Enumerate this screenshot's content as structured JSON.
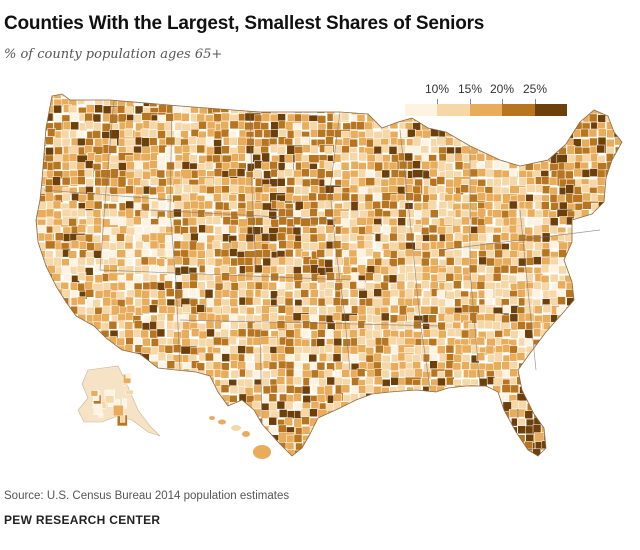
{
  "title": "Counties With the Largest, Smallest Shares of Seniors",
  "subtitle": "% of county population ages 65+",
  "legend": {
    "labels": [
      "10%",
      "15%",
      "20%",
      "25%"
    ],
    "colors": [
      "#fdf3e3",
      "#f6d7a7",
      "#e8ac5a",
      "#b87520",
      "#6d3f0a"
    ]
  },
  "source": "Source: U.S. Census Bureau 2014 population estimates",
  "organization": "PEW RESEARCH CENTER",
  "map": {
    "border_color": "#ffffff",
    "state_line_color": "#777777",
    "regions": [
      "Contiguous U.S.",
      "Alaska",
      "Hawaii"
    ]
  }
}
